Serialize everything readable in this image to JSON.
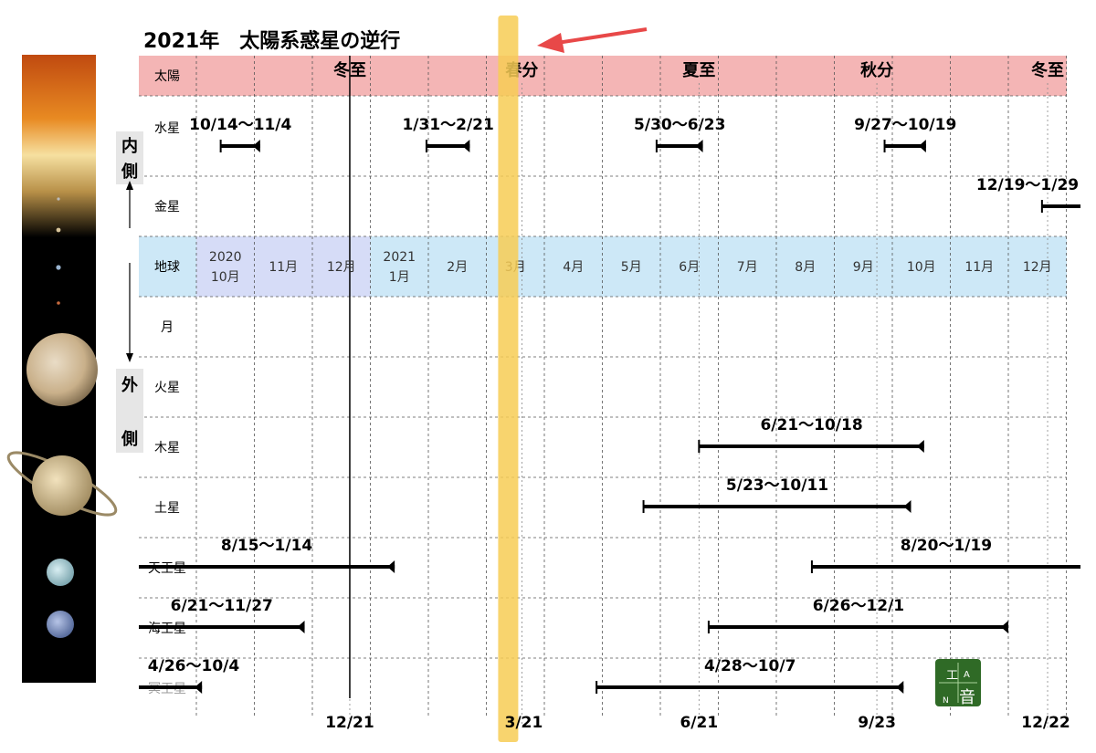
{
  "title": "2021年　太陽系惑星の逆行",
  "rows": [
    "太陽",
    "水星",
    "金星",
    "地球",
    "月",
    "火星",
    "木星",
    "土星",
    "天王星",
    "海王星",
    "冥王星"
  ],
  "side_labels": {
    "inner": [
      "内",
      "側"
    ],
    "outer": [
      "外",
      "側"
    ]
  },
  "months": [
    {
      "label": [
        "2020",
        "10月"
      ]
    },
    {
      "label": [
        "11月"
      ]
    },
    {
      "label": [
        "12月"
      ]
    },
    {
      "label": [
        "2021",
        "1月"
      ]
    },
    {
      "label": [
        "2月"
      ]
    },
    {
      "label": [
        "3月"
      ]
    },
    {
      "label": [
        "4月"
      ]
    },
    {
      "label": [
        "5月"
      ]
    },
    {
      "label": [
        "6月"
      ]
    },
    {
      "label": [
        "7月"
      ]
    },
    {
      "label": [
        "8月"
      ]
    },
    {
      "label": [
        "9月"
      ]
    },
    {
      "label": [
        "10月"
      ]
    },
    {
      "label": [
        "11月"
      ]
    },
    {
      "label": [
        "12月"
      ]
    }
  ],
  "seasons": [
    {
      "label": "冬至",
      "date": "2020-12-21"
    },
    {
      "label": "春分",
      "date": "2021-03-20"
    },
    {
      "label": "夏至",
      "date": "2021-06-21"
    },
    {
      "label": "秋分",
      "date": "2021-09-23"
    },
    {
      "label": "冬至",
      "date": "2021-12-22"
    }
  ],
  "bottom_ticks": [
    {
      "label": "12/21",
      "date": "2020-12-21"
    },
    {
      "label": "3/21",
      "date": "2021-03-21"
    },
    {
      "label": "6/21",
      "date": "2021-06-21"
    },
    {
      "label": "9/23",
      "date": "2021-09-23"
    },
    {
      "label": "12/22",
      "date": "2021-12-22"
    }
  ],
  "chart_data": {
    "type": "timeline",
    "title": "2021年　太陽系惑星の逆行",
    "x_range": [
      "2020-09-15",
      "2021-12-31"
    ],
    "current_date_line": "2020-12-21",
    "highlight_date": "2021-03-20",
    "retrogrades": [
      {
        "planet": "水星",
        "label": "10/14〜11/4",
        "start": "2020-10-14",
        "end": "2020-11-04"
      },
      {
        "planet": "水星",
        "label": "1/31〜2/21",
        "start": "2021-01-31",
        "end": "2021-02-21"
      },
      {
        "planet": "水星",
        "label": "5/30〜6/23",
        "start": "2021-05-30",
        "end": "2021-06-23"
      },
      {
        "planet": "水星",
        "label": "9/27〜10/19",
        "start": "2021-09-27",
        "end": "2021-10-19"
      },
      {
        "planet": "金星",
        "label": "12/19〜1/29",
        "start": "2021-12-19",
        "end": "2022-01-29"
      },
      {
        "planet": "木星",
        "label": "6/21〜10/18",
        "start": "2021-06-21",
        "end": "2021-10-18"
      },
      {
        "planet": "土星",
        "label": "5/23〜10/11",
        "start": "2021-05-23",
        "end": "2021-10-11"
      },
      {
        "planet": "天王星",
        "label": "8/15〜1/14",
        "start": "2020-08-15",
        "end": "2021-01-14"
      },
      {
        "planet": "天王星",
        "label": "8/20〜1/19",
        "start": "2021-08-20",
        "end": "2022-01-19"
      },
      {
        "planet": "海王星",
        "label": "6/21〜11/27",
        "start": "2020-06-21",
        "end": "2020-11-27"
      },
      {
        "planet": "海王星",
        "label": "6/26〜12/1",
        "start": "2021-06-26",
        "end": "2021-12-01"
      },
      {
        "planet": "冥王星",
        "label": "4/26〜10/4",
        "start": "2020-04-26",
        "end": "2020-10-04"
      },
      {
        "planet": "冥王星",
        "label": "4/28〜10/7",
        "start": "2021-04-28",
        "end": "2021-10-07"
      }
    ]
  },
  "colors": {
    "sun_row": "#f4b5b5",
    "earth_row": "#cde8f7",
    "earth_month_highlight": "#d6dcf7",
    "highlight_band": "#f7cc55",
    "arrow": "#e84848",
    "bar": "#000000"
  },
  "logo": {
    "top": "工",
    "right": "A",
    "bottom_left": "N",
    "main": "音"
  }
}
